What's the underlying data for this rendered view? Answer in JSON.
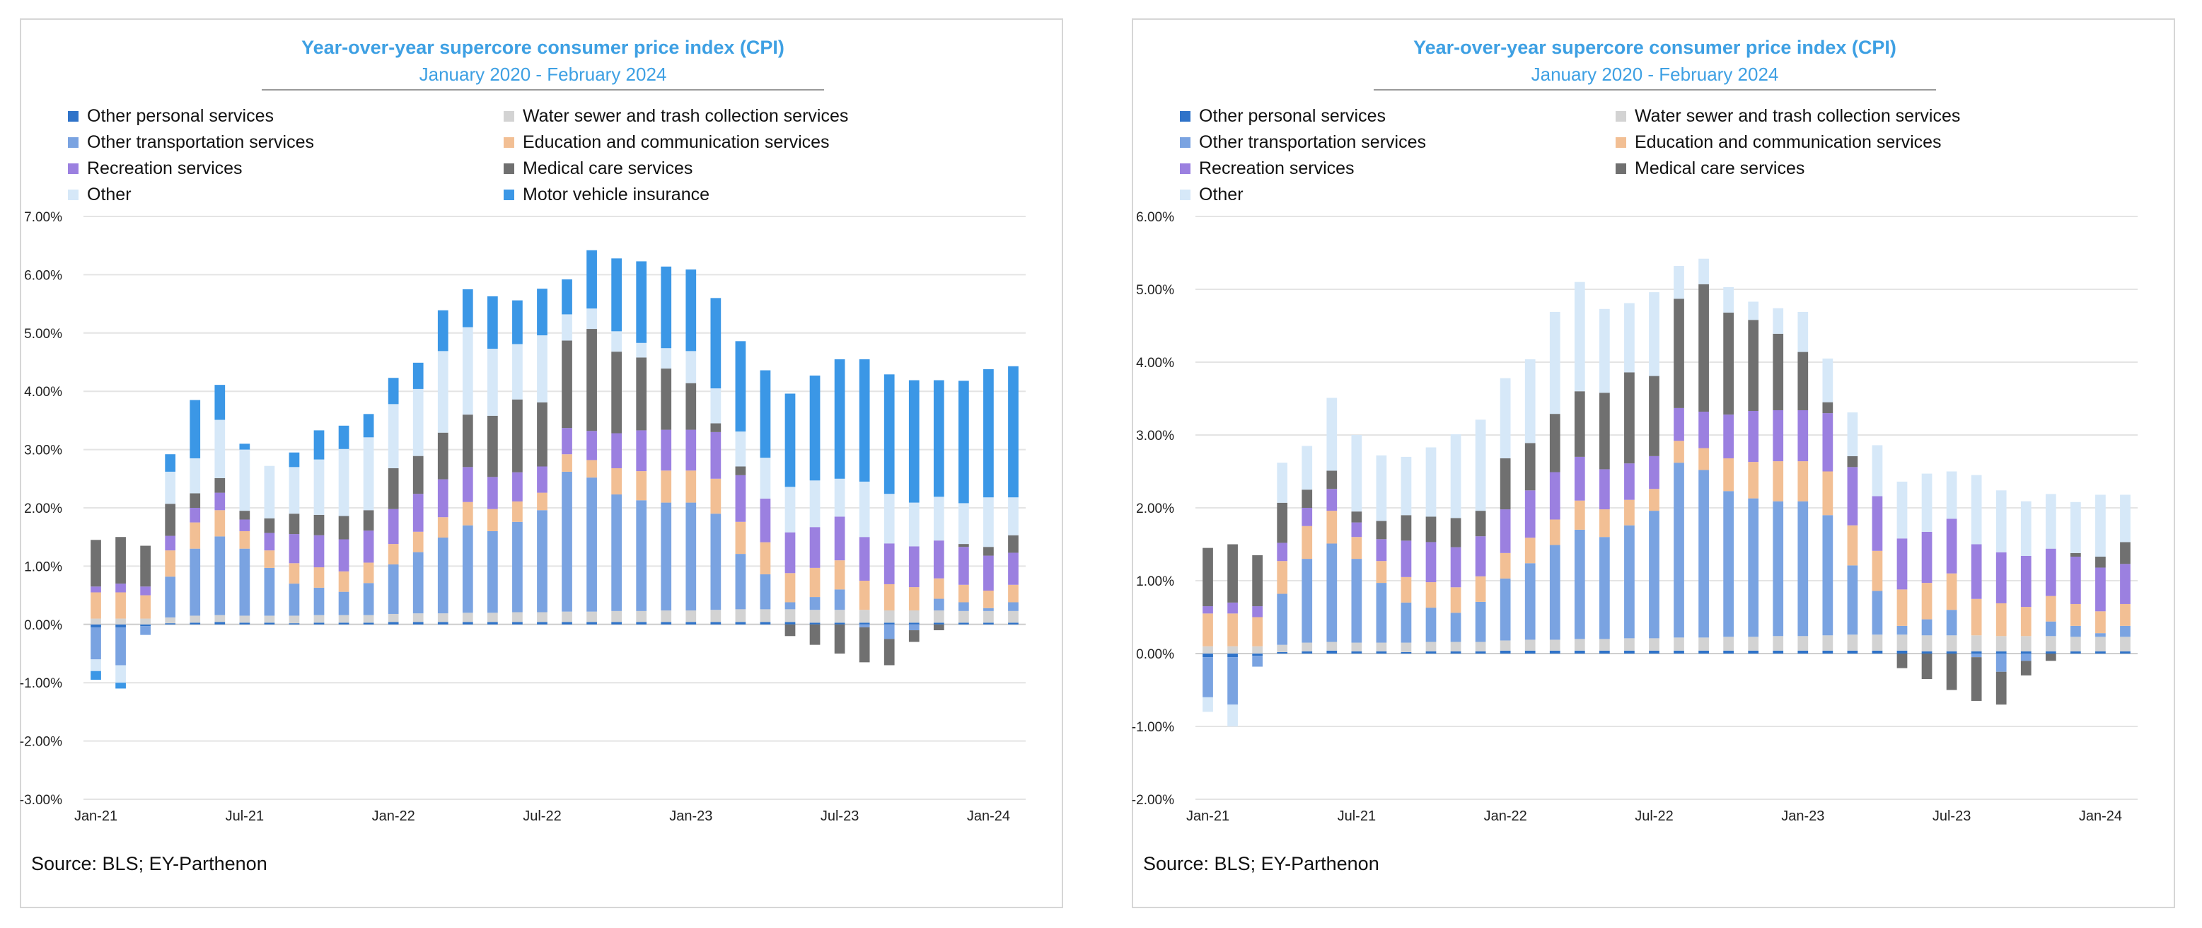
{
  "source": "Source: BLS; EY-Parthenon",
  "colors": {
    "Motor vehicle insurance": "#3b97e6",
    "Other personal services": "#2f73c9",
    "Water sewer and trash collection services": "#d3d3d3",
    "Other transportation services": "#7aa3e1",
    "Education and communication services": "#f2bf94",
    "Recreation services": "#9b80e0",
    "Medical care services": "#707070",
    "Other": "#d6e8f8"
  },
  "x_labels": [
    "Jan-21",
    "Jul-21",
    "Jan-22",
    "Jul-22",
    "Jan-23",
    "Jul-23",
    "Jan-24"
  ],
  "chart_data": [
    {
      "type": "bar",
      "stacked": true,
      "title": "Year-over-year supercore consumer price index (CPI)",
      "subtitle": "January 2020 - February 2024",
      "legend": [
        "Other personal services",
        "Water sewer and trash collection services",
        "Other transportation services",
        "Education and communication services",
        "Recreation services",
        "Medical care services",
        "Other",
        "Motor vehicle insurance"
      ],
      "y_ticks": [
        "7.00%",
        "6.00%",
        "5.00%",
        "4.00%",
        "3.00%",
        "2.00%",
        "1.00%",
        "0.00%",
        "-1.00%",
        "-2.00%",
        "-3.00%"
      ],
      "ylim": [
        -3,
        7
      ],
      "grid": true,
      "x": [
        "Jan-21",
        "Feb-21",
        "Mar-21",
        "Apr-21",
        "May-21",
        "Jun-21",
        "Jul-21",
        "Aug-21",
        "Sep-21",
        "Oct-21",
        "Nov-21",
        "Dec-21",
        "Jan-22",
        "Feb-22",
        "Mar-22",
        "Apr-22",
        "May-22",
        "Jun-22",
        "Jul-22",
        "Aug-22",
        "Sep-22",
        "Oct-22",
        "Nov-22",
        "Dec-22",
        "Jan-23",
        "Feb-23",
        "Mar-23",
        "Apr-23",
        "May-23",
        "Jun-23",
        "Jul-23",
        "Aug-23",
        "Sep-23",
        "Oct-23",
        "Nov-23",
        "Dec-23",
        "Jan-24",
        "Feb-24"
      ],
      "series": [
        {
          "name": "Other personal services",
          "values": [
            -0.05,
            -0.05,
            -0.03,
            0.02,
            0.03,
            0.04,
            0.03,
            0.03,
            0.02,
            0.03,
            0.03,
            0.03,
            0.04,
            0.04,
            0.04,
            0.04,
            0.04,
            0.04,
            0.04,
            0.04,
            0.04,
            0.04,
            0.04,
            0.04,
            0.04,
            0.04,
            0.04,
            0.04,
            0.04,
            0.03,
            0.03,
            0.03,
            0.03,
            0.03,
            0.03,
            0.03,
            0.03,
            0.03
          ]
        },
        {
          "name": "Water sewer and trash collection services",
          "values": [
            0.1,
            0.1,
            0.1,
            0.1,
            0.12,
            0.12,
            0.12,
            0.12,
            0.13,
            0.13,
            0.13,
            0.13,
            0.14,
            0.15,
            0.15,
            0.16,
            0.16,
            0.17,
            0.17,
            0.18,
            0.18,
            0.19,
            0.19,
            0.2,
            0.2,
            0.21,
            0.22,
            0.22,
            0.22,
            0.22,
            0.22,
            0.22,
            0.21,
            0.21,
            0.21,
            0.2,
            0.2,
            0.2
          ]
        },
        {
          "name": "Other transportation services",
          "values": [
            -0.55,
            -0.65,
            -0.15,
            0.7,
            1.15,
            1.35,
            1.15,
            0.82,
            0.55,
            0.47,
            0.4,
            0.55,
            0.85,
            1.05,
            1.3,
            1.5,
            1.4,
            1.55,
            1.75,
            2.4,
            2.3,
            2.0,
            1.9,
            1.85,
            1.85,
            1.65,
            0.95,
            0.6,
            0.12,
            0.22,
            0.35,
            -0.05,
            -0.25,
            -0.1,
            0.2,
            0.15,
            0.05,
            0.15
          ]
        },
        {
          "name": "Education and communication services",
          "values": [
            0.45,
            0.45,
            0.4,
            0.45,
            0.45,
            0.45,
            0.3,
            0.3,
            0.35,
            0.35,
            0.35,
            0.35,
            0.35,
            0.35,
            0.35,
            0.4,
            0.38,
            0.35,
            0.3,
            0.3,
            0.3,
            0.45,
            0.5,
            0.55,
            0.55,
            0.6,
            0.55,
            0.55,
            0.5,
            0.5,
            0.5,
            0.5,
            0.45,
            0.4,
            0.35,
            0.3,
            0.3,
            0.3
          ]
        },
        {
          "name": "Recreation services",
          "values": [
            0.1,
            0.15,
            0.15,
            0.25,
            0.25,
            0.3,
            0.2,
            0.3,
            0.5,
            0.55,
            0.55,
            0.55,
            0.6,
            0.65,
            0.65,
            0.6,
            0.55,
            0.5,
            0.45,
            0.45,
            0.5,
            0.6,
            0.7,
            0.7,
            0.7,
            0.8,
            0.8,
            0.75,
            0.7,
            0.7,
            0.75,
            0.75,
            0.7,
            0.7,
            0.65,
            0.65,
            0.6,
            0.55
          ]
        },
        {
          "name": "Medical care services",
          "values": [
            0.8,
            0.8,
            0.7,
            0.55,
            0.25,
            0.25,
            0.15,
            0.25,
            0.35,
            0.35,
            0.4,
            0.35,
            0.7,
            0.65,
            0.8,
            0.9,
            1.05,
            1.25,
            1.1,
            1.5,
            1.75,
            1.4,
            1.25,
            1.05,
            0.8,
            0.15,
            0.15,
            0.0,
            -0.2,
            -0.35,
            -0.5,
            -0.6,
            -0.45,
            -0.2,
            -0.1,
            0.05,
            0.15,
            0.3
          ]
        },
        {
          "name": "Other",
          "values": [
            -0.2,
            -0.3,
            0.0,
            0.55,
            0.6,
            1.0,
            1.05,
            0.9,
            0.8,
            0.95,
            1.15,
            1.25,
            1.1,
            1.15,
            1.4,
            1.5,
            1.15,
            0.95,
            1.15,
            0.45,
            0.35,
            0.35,
            0.25,
            0.35,
            0.55,
            0.6,
            0.6,
            0.7,
            0.78,
            0.8,
            0.65,
            0.95,
            0.85,
            0.75,
            0.75,
            0.7,
            0.85,
            0.65
          ]
        },
        {
          "name": "Motor vehicle insurance",
          "values": [
            -0.15,
            -0.1,
            0.0,
            0.3,
            1.0,
            0.6,
            0.1,
            0.0,
            0.25,
            0.5,
            0.4,
            0.4,
            0.45,
            0.45,
            0.7,
            0.65,
            0.9,
            0.75,
            0.8,
            0.6,
            1.0,
            1.25,
            1.4,
            1.4,
            1.4,
            1.55,
            1.55,
            1.5,
            1.6,
            1.8,
            2.05,
            2.1,
            2.05,
            2.1,
            2.0,
            2.1,
            2.2,
            2.25
          ]
        }
      ]
    },
    {
      "type": "bar",
      "stacked": true,
      "title": "Year-over-year supercore consumer price index (CPI)",
      "subtitle": "January 2020 - February 2024",
      "legend": [
        "Other personal services",
        "Water sewer and trash collection services",
        "Other transportation services",
        "Education and communication services",
        "Recreation services",
        "Medical care services",
        "Other"
      ],
      "y_ticks": [
        "6.00%",
        "5.00%",
        "4.00%",
        "3.00%",
        "2.00%",
        "1.00%",
        "0.00%",
        "-1.00%",
        "-2.00%"
      ],
      "ylim": [
        -2,
        6
      ],
      "grid": true,
      "x": [
        "Jan-21",
        "Feb-21",
        "Mar-21",
        "Apr-21",
        "May-21",
        "Jun-21",
        "Jul-21",
        "Aug-21",
        "Sep-21",
        "Oct-21",
        "Nov-21",
        "Dec-21",
        "Jan-22",
        "Feb-22",
        "Mar-22",
        "Apr-22",
        "May-22",
        "Jun-22",
        "Jul-22",
        "Aug-22",
        "Sep-22",
        "Oct-22",
        "Nov-22",
        "Dec-22",
        "Jan-23",
        "Feb-23",
        "Mar-23",
        "Apr-23",
        "May-23",
        "Jun-23",
        "Jul-23",
        "Aug-23",
        "Sep-23",
        "Oct-23",
        "Nov-23",
        "Dec-23",
        "Jan-24",
        "Feb-24"
      ],
      "series": [
        {
          "name": "Other personal services",
          "values": [
            -0.05,
            -0.05,
            -0.03,
            0.02,
            0.03,
            0.04,
            0.03,
            0.03,
            0.02,
            0.03,
            0.03,
            0.03,
            0.04,
            0.04,
            0.04,
            0.04,
            0.04,
            0.04,
            0.04,
            0.04,
            0.04,
            0.04,
            0.04,
            0.04,
            0.04,
            0.04,
            0.04,
            0.04,
            0.04,
            0.03,
            0.03,
            0.03,
            0.03,
            0.03,
            0.03,
            0.03,
            0.03,
            0.03
          ]
        },
        {
          "name": "Water sewer and trash collection services",
          "values": [
            0.1,
            0.1,
            0.1,
            0.1,
            0.12,
            0.12,
            0.12,
            0.12,
            0.13,
            0.13,
            0.13,
            0.13,
            0.14,
            0.15,
            0.15,
            0.16,
            0.16,
            0.17,
            0.17,
            0.18,
            0.18,
            0.19,
            0.19,
            0.2,
            0.2,
            0.21,
            0.22,
            0.22,
            0.22,
            0.22,
            0.22,
            0.22,
            0.21,
            0.21,
            0.21,
            0.2,
            0.2,
            0.2
          ]
        },
        {
          "name": "Other transportation services",
          "values": [
            -0.55,
            -0.65,
            -0.15,
            0.7,
            1.15,
            1.35,
            1.15,
            0.82,
            0.55,
            0.47,
            0.4,
            0.55,
            0.85,
            1.05,
            1.3,
            1.5,
            1.4,
            1.55,
            1.75,
            2.4,
            2.3,
            2.0,
            1.9,
            1.85,
            1.85,
            1.65,
            0.95,
            0.6,
            0.12,
            0.22,
            0.35,
            -0.05,
            -0.25,
            -0.1,
            0.2,
            0.15,
            0.05,
            0.15
          ]
        },
        {
          "name": "Education and communication services",
          "values": [
            0.45,
            0.45,
            0.4,
            0.45,
            0.45,
            0.45,
            0.3,
            0.3,
            0.35,
            0.35,
            0.35,
            0.35,
            0.35,
            0.35,
            0.35,
            0.4,
            0.38,
            0.35,
            0.3,
            0.3,
            0.3,
            0.45,
            0.5,
            0.55,
            0.55,
            0.6,
            0.55,
            0.55,
            0.5,
            0.5,
            0.5,
            0.5,
            0.45,
            0.4,
            0.35,
            0.3,
            0.3,
            0.3
          ]
        },
        {
          "name": "Recreation services",
          "values": [
            0.1,
            0.15,
            0.15,
            0.25,
            0.25,
            0.3,
            0.2,
            0.3,
            0.5,
            0.55,
            0.55,
            0.55,
            0.6,
            0.65,
            0.65,
            0.6,
            0.55,
            0.5,
            0.45,
            0.45,
            0.5,
            0.6,
            0.7,
            0.7,
            0.7,
            0.8,
            0.8,
            0.75,
            0.7,
            0.7,
            0.75,
            0.75,
            0.7,
            0.7,
            0.65,
            0.65,
            0.6,
            0.55
          ]
        },
        {
          "name": "Medical care services",
          "values": [
            0.8,
            0.8,
            0.7,
            0.55,
            0.25,
            0.25,
            0.15,
            0.25,
            0.35,
            0.35,
            0.4,
            0.35,
            0.7,
            0.65,
            0.8,
            0.9,
            1.05,
            1.25,
            1.1,
            1.5,
            1.75,
            1.4,
            1.25,
            1.05,
            0.8,
            0.15,
            0.15,
            0.0,
            -0.2,
            -0.35,
            -0.5,
            -0.6,
            -0.45,
            -0.2,
            -0.1,
            0.05,
            0.15,
            0.3
          ]
        },
        {
          "name": "Other",
          "values": [
            -0.2,
            -0.3,
            0.0,
            0.55,
            0.6,
            1.0,
            1.05,
            0.9,
            0.8,
            0.95,
            1.15,
            1.25,
            1.1,
            1.15,
            1.4,
            1.5,
            1.15,
            0.95,
            1.15,
            0.45,
            0.35,
            0.35,
            0.25,
            0.35,
            0.55,
            0.6,
            0.6,
            0.7,
            0.78,
            0.8,
            0.65,
            0.95,
            0.85,
            0.75,
            0.75,
            0.7,
            0.85,
            0.65
          ]
        }
      ]
    }
  ]
}
